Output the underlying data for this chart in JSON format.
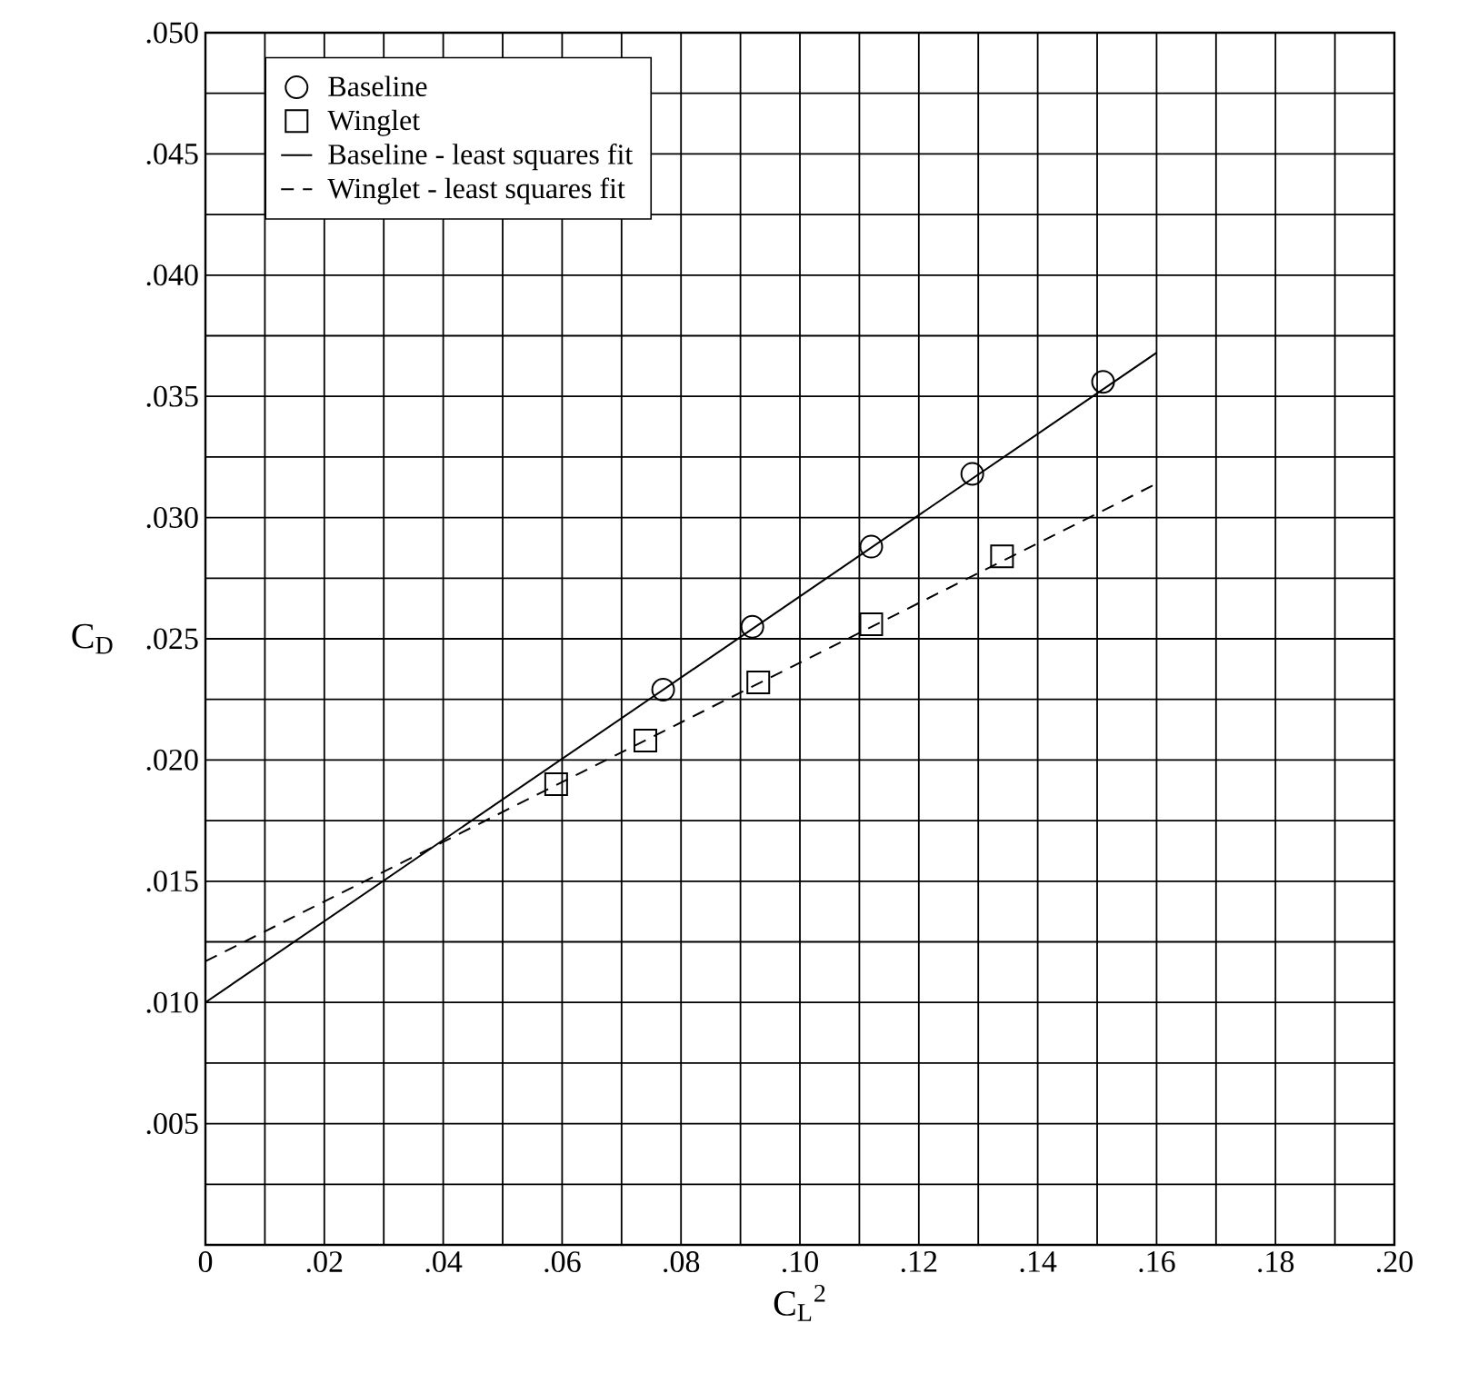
{
  "chart_data": {
    "type": "scatter",
    "xlabel": "C$_{L}$$^{2}$",
    "ylabel": "C$_{D}$",
    "xlim": [
      0,
      0.2
    ],
    "ylim": [
      0,
      0.05
    ],
    "xticks": [
      {
        "value": 0,
        "label": "0"
      },
      {
        "value": 0.01,
        "label": null
      },
      {
        "value": 0.02,
        "label": ".02"
      },
      {
        "value": 0.03,
        "label": null
      },
      {
        "value": 0.04,
        "label": ".04"
      },
      {
        "value": 0.05,
        "label": null
      },
      {
        "value": 0.06,
        "label": ".06"
      },
      {
        "value": 0.07,
        "label": null
      },
      {
        "value": 0.08,
        "label": ".08"
      },
      {
        "value": 0.09,
        "label": null
      },
      {
        "value": 0.1,
        "label": ".10"
      },
      {
        "value": 0.11,
        "label": null
      },
      {
        "value": 0.12,
        "label": ".12"
      },
      {
        "value": 0.13,
        "label": null
      },
      {
        "value": 0.14,
        "label": ".14"
      },
      {
        "value": 0.15,
        "label": null
      },
      {
        "value": 0.16,
        "label": ".16"
      },
      {
        "value": 0.17,
        "label": null
      },
      {
        "value": 0.18,
        "label": ".18"
      },
      {
        "value": 0.19,
        "label": null
      },
      {
        "value": 0.2,
        "label": ".20"
      }
    ],
    "yticks": [
      {
        "value": 0,
        "label": null
      },
      {
        "value": 0.0025,
        "label": null
      },
      {
        "value": 0.005,
        "label": ".005"
      },
      {
        "value": 0.0075,
        "label": null
      },
      {
        "value": 0.01,
        "label": ".010"
      },
      {
        "value": 0.0125,
        "label": null
      },
      {
        "value": 0.015,
        "label": ".015"
      },
      {
        "value": 0.0175,
        "label": null
      },
      {
        "value": 0.02,
        "label": ".020"
      },
      {
        "value": 0.0225,
        "label": null
      },
      {
        "value": 0.025,
        "label": ".025"
      },
      {
        "value": 0.0275,
        "label": null
      },
      {
        "value": 0.03,
        "label": ".030"
      },
      {
        "value": 0.0325,
        "label": null
      },
      {
        "value": 0.035,
        "label": ".035"
      },
      {
        "value": 0.0375,
        "label": null
      },
      {
        "value": 0.04,
        "label": ".040"
      },
      {
        "value": 0.0425,
        "label": null
      },
      {
        "value": 0.045,
        "label": ".045"
      },
      {
        "value": 0.0475,
        "label": null
      },
      {
        "value": 0.05,
        "label": ".050"
      }
    ],
    "grid": true,
    "legend": "top left",
    "series": [
      {
        "name": "Baseline",
        "color": "#000000",
        "marker": "circle",
        "x": [
          0.077,
          0.092,
          0.112,
          0.129,
          0.151
        ],
        "values": [
          0.0229,
          0.0255,
          0.0288,
          0.0318,
          0.0356
        ]
      },
      {
        "name": "Winglet",
        "color": "#000000",
        "marker": "square",
        "x": [
          0.059,
          0.074,
          0.093,
          0.112,
          0.134
        ],
        "values": [
          0.019,
          0.0208,
          0.0232,
          0.0256,
          0.0284
        ]
      },
      {
        "name": "Baseline - least squares fit",
        "type": "line",
        "line_style": "solid",
        "color": "#000000",
        "x": [
          0,
          0.16
        ],
        "values": [
          0.01,
          0.0368
        ]
      },
      {
        "name": "Winglet - least squares fit",
        "type": "line",
        "line_style": "dashed",
        "color": "#000000",
        "x": [
          0,
          0.16
        ],
        "values": [
          0.0117,
          0.0314
        ]
      }
    ]
  }
}
